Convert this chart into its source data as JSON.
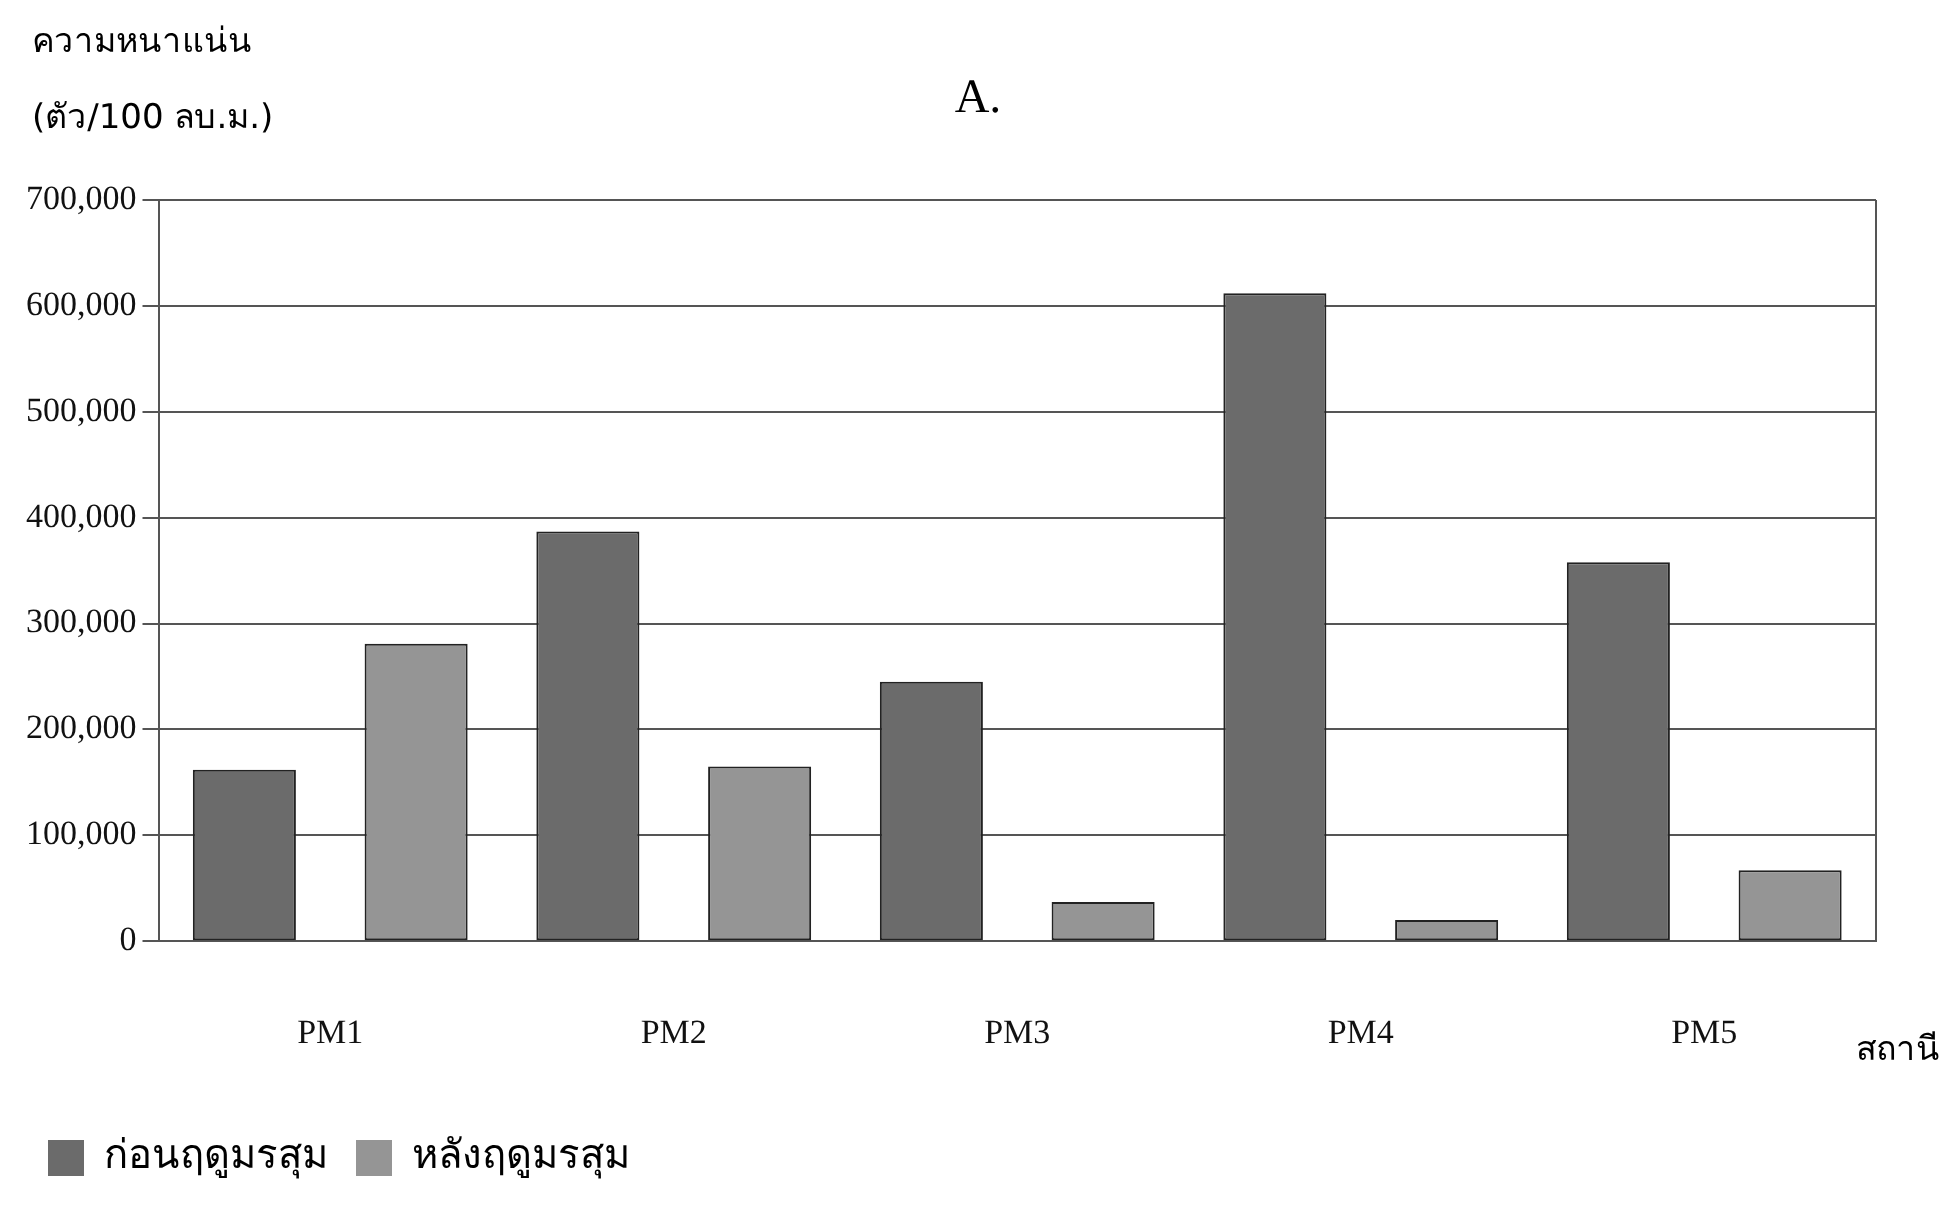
{
  "chart_data": {
    "type": "bar",
    "title": "A.",
    "ylabel": "ความหนาแน่น\n(ตัว/100 ลบ.ม.)",
    "xlabel": "สถานี",
    "categories": [
      "PM1",
      "PM2",
      "PM3",
      "PM4",
      "PM5"
    ],
    "series": [
      {
        "name": "ก่อนฤดูมรสุม",
        "color": "#6b6b6b",
        "values": [
          162000,
          387000,
          245000,
          612000,
          358000
        ]
      },
      {
        "name": "หลังฤดูมรสุม",
        "color": "#959595",
        "values": [
          281000,
          165000,
          37000,
          20000,
          67000
        ]
      }
    ],
    "ylim": [
      0,
      700000
    ],
    "yticks": [
      0,
      {
        "value": 100000,
        "label": "100,000"
      },
      {
        "value": 200000,
        "label": "200,000"
      },
      {
        "value": 300000,
        "label": "300,000"
      },
      {
        "value": 400000,
        "label": "400,000"
      },
      {
        "value": 500000,
        "label": "500,000"
      },
      {
        "value": 600000,
        "label": "600,000"
      },
      {
        "value": 700000,
        "label": "700,000"
      }
    ],
    "grid": "y",
    "legend": "bottom"
  }
}
